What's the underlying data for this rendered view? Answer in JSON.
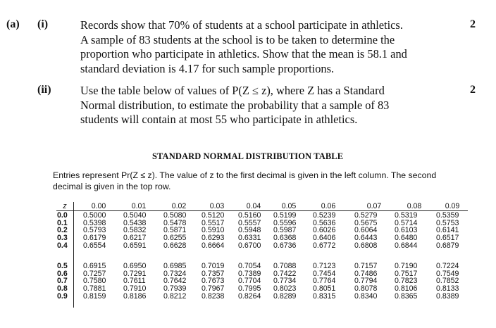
{
  "part_a": {
    "label": "(a)"
  },
  "q_i": {
    "label": "(i)",
    "lines": [
      "Records show that 70% of students at a school participate in athletics.",
      "A sample of 83 students at the school is to be taken to determine the",
      "proportion who participate in athletics. Show that the mean is 58.1 and",
      "standard deviation is 4.17 for such sample proportions."
    ],
    "marks": "2"
  },
  "q_ii": {
    "label": "(ii)",
    "lines": [
      "Use the table below of values of P(Z ≤ z), where Z has a Standard",
      "Normal distribution, to estimate the probability that a sample of 83",
      "students will contain at most 55 who participate in athletics."
    ],
    "marks": "2"
  },
  "table": {
    "title": "STANDARD NORMAL DISTRIBUTION TABLE",
    "intro_lines": [
      "Entries represent Pr(Z ≤ z). The value of z to the first decimal is given in the left column. The second",
      "decimal is given in the top row."
    ],
    "z_header": "z",
    "columns": [
      "0.00",
      "0.01",
      "0.02",
      "0.03",
      "0.04",
      "0.05",
      "0.06",
      "0.07",
      "0.08",
      "0.09"
    ],
    "row_labels_1": [
      "0.0",
      "0.1",
      "0.2",
      "0.3",
      "0.4"
    ],
    "row_labels_2": [
      "0.5",
      "0.6",
      "0.7",
      "0.8",
      "0.9"
    ],
    "rows_1": [
      [
        "0.5000",
        "0.5040",
        "0.5080",
        "0.5120",
        "0.5160",
        "0.5199",
        "0.5239",
        "0.5279",
        "0.5319",
        "0.5359"
      ],
      [
        "0.5398",
        "0.5438",
        "0.5478",
        "0.5517",
        "0.5557",
        "0.5596",
        "0.5636",
        "0.5675",
        "0.5714",
        "0.5753"
      ],
      [
        "0.5793",
        "0.5832",
        "0.5871",
        "0.5910",
        "0.5948",
        "0.5987",
        "0.6026",
        "0.6064",
        "0.6103",
        "0.6141"
      ],
      [
        "0.6179",
        "0.6217",
        "0.6255",
        "0.6293",
        "0.6331",
        "0.6368",
        "0.6406",
        "0.6443",
        "0.6480",
        "0.6517"
      ],
      [
        "0.6554",
        "0.6591",
        "0.6628",
        "0.6664",
        "0.6700",
        "0.6736",
        "0.6772",
        "0.6808",
        "0.6844",
        "0.6879"
      ]
    ],
    "rows_2": [
      [
        "0.6915",
        "0.6950",
        "0.6985",
        "0.7019",
        "0.7054",
        "0.7088",
        "0.7123",
        "0.7157",
        "0.7190",
        "0.7224"
      ],
      [
        "0.7257",
        "0.7291",
        "0.7324",
        "0.7357",
        "0.7389",
        "0.7422",
        "0.7454",
        "0.7486",
        "0.7517",
        "0.7549"
      ],
      [
        "0.7580",
        "0.7611",
        "0.7642",
        "0.7673",
        "0.7704",
        "0.7734",
        "0.7764",
        "0.7794",
        "0.7823",
        "0.7852"
      ],
      [
        "0.7881",
        "0.7910",
        "0.7939",
        "0.7967",
        "0.7995",
        "0.8023",
        "0.8051",
        "0.8078",
        "0.8106",
        "0.8133"
      ],
      [
        "0.8159",
        "0.8186",
        "0.8212",
        "0.8238",
        "0.8264",
        "0.8289",
        "0.8315",
        "0.8340",
        "0.8365",
        "0.8389"
      ]
    ]
  }
}
